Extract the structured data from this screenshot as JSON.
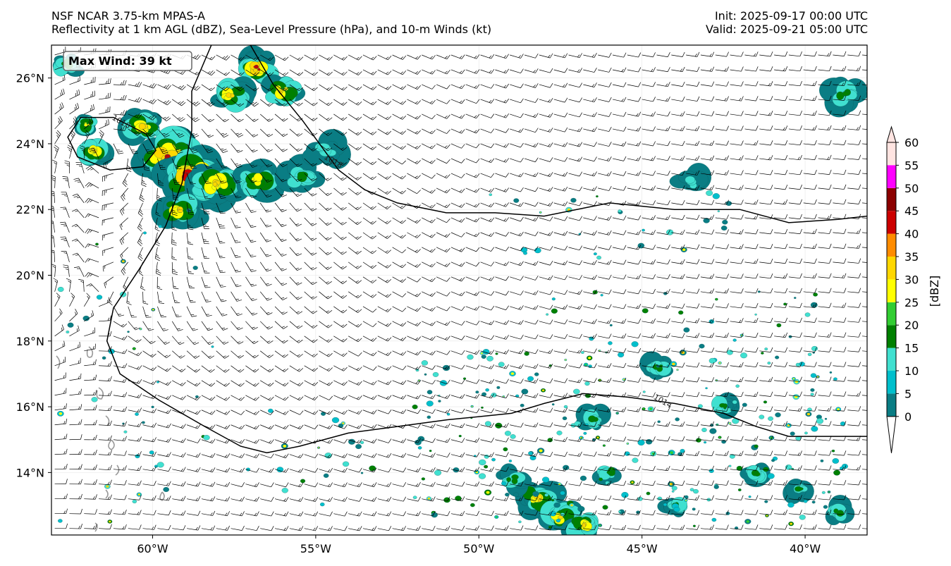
{
  "header": {
    "left_line1": "NSF NCAR 3.75-km MPAS-A",
    "left_line2": "Reflectivity at 1 km AGL (dBZ), Sea-Level Pressure (hPa), and 10-m Winds (kt)",
    "right_line1": "Init: 2025-09-17 00:00 UTC",
    "right_line2": "Valid: 2025-09-21 05:00 UTC"
  },
  "map": {
    "lon_range": [
      -63.1,
      -38.1
    ],
    "lat_range": [
      12.1,
      27.0
    ],
    "lon_ticks": [
      {
        "value": -60,
        "label": "60°W"
      },
      {
        "value": -55,
        "label": "55°W"
      },
      {
        "value": -50,
        "label": "50°W"
      },
      {
        "value": -45,
        "label": "45°W"
      },
      {
        "value": -40,
        "label": "40°W"
      }
    ],
    "lat_ticks": [
      {
        "value": 26,
        "label": "26°N"
      },
      {
        "value": 24,
        "label": "24°N"
      },
      {
        "value": 22,
        "label": "22°N"
      },
      {
        "value": 20,
        "label": "20°N"
      },
      {
        "value": 18,
        "label": "18°N"
      },
      {
        "value": 16,
        "label": "16°N"
      },
      {
        "value": 14,
        "label": "14°N"
      }
    ],
    "max_wind_label": "Max Wind: 39 kt",
    "isobars": [
      {
        "label": "1018",
        "label_lon": -54.5,
        "label_lat": 23.4,
        "points": [
          [
            -57.0,
            27.0
          ],
          [
            -56.3,
            25.8
          ],
          [
            -55.4,
            24.7
          ],
          [
            -54.3,
            23.2
          ],
          [
            -53.5,
            22.6
          ],
          [
            -52.5,
            22.2
          ],
          [
            -51.0,
            21.9
          ],
          [
            -49.5,
            21.9
          ],
          [
            -48.0,
            21.8
          ],
          [
            -46.0,
            22.2
          ],
          [
            -44.0,
            22.0
          ],
          [
            -42.0,
            22.0
          ],
          [
            -40.5,
            21.6
          ],
          [
            -39.0,
            21.7
          ],
          [
            -38.1,
            21.8
          ]
        ]
      },
      {
        "label": "1014",
        "label_lon": -44.4,
        "label_lat": 16.1,
        "points": [
          [
            -58.2,
            27.0
          ],
          [
            -58.8,
            25.6
          ],
          [
            -58.8,
            24.4
          ],
          [
            -59.1,
            22.8
          ],
          [
            -59.6,
            21.5
          ],
          [
            -60.4,
            20.2
          ],
          [
            -61.2,
            19.0
          ],
          [
            -61.4,
            18.0
          ],
          [
            -61.0,
            17.0
          ],
          [
            -59.8,
            16.2
          ],
          [
            -58.4,
            15.4
          ],
          [
            -57.3,
            14.8
          ],
          [
            -56.5,
            14.6
          ],
          [
            -55.5,
            14.8
          ],
          [
            -54.0,
            15.2
          ],
          [
            -52.5,
            15.4
          ],
          [
            -51.0,
            15.6
          ],
          [
            -50.0,
            15.7
          ],
          [
            -49.0,
            15.8
          ],
          [
            -48.0,
            16.1
          ],
          [
            -46.8,
            16.4
          ],
          [
            -45.5,
            16.3
          ],
          [
            -44.0,
            16.1
          ],
          [
            -42.5,
            15.8
          ],
          [
            -41.5,
            15.4
          ],
          [
            -40.5,
            15.1
          ],
          [
            -39.2,
            15.1
          ],
          [
            -38.1,
            15.1
          ]
        ]
      },
      {
        "label": "1010",
        "label_lon": -61.0,
        "label_lat": 24.6,
        "points": [
          [
            -61.2,
            24.8
          ],
          [
            -60.2,
            24.3
          ],
          [
            -59.9,
            23.8
          ],
          [
            -60.3,
            23.3
          ],
          [
            -61.3,
            23.2
          ],
          [
            -62.3,
            23.6
          ],
          [
            -62.6,
            24.2
          ],
          [
            -62.2,
            24.8
          ],
          [
            -61.2,
            24.8
          ]
        ]
      }
    ],
    "echo_clusters": [
      {
        "lon": -59.5,
        "lat": 23.6,
        "dbz": 45,
        "size": 1.2
      },
      {
        "lon": -58.8,
        "lat": 23.0,
        "dbz": 50,
        "size": 1.0
      },
      {
        "lon": -58.0,
        "lat": 22.8,
        "dbz": 40,
        "size": 0.9
      },
      {
        "lon": -59.2,
        "lat": 22.0,
        "dbz": 40,
        "size": 0.7
      },
      {
        "lon": -60.3,
        "lat": 24.5,
        "dbz": 35,
        "size": 0.7
      },
      {
        "lon": -56.8,
        "lat": 22.9,
        "dbz": 30,
        "size": 0.8
      },
      {
        "lon": -55.4,
        "lat": 23.0,
        "dbz": 20,
        "size": 0.7
      },
      {
        "lon": -56.8,
        "lat": 26.3,
        "dbz": 45,
        "size": 0.6
      },
      {
        "lon": -56.0,
        "lat": 25.6,
        "dbz": 35,
        "size": 0.6
      },
      {
        "lon": -57.6,
        "lat": 25.5,
        "dbz": 35,
        "size": 0.6
      },
      {
        "lon": -61.8,
        "lat": 23.8,
        "dbz": 40,
        "size": 0.5
      },
      {
        "lon": -62.0,
        "lat": 24.6,
        "dbz": 30,
        "size": 0.4
      },
      {
        "lon": -62.6,
        "lat": 26.4,
        "dbz": 25,
        "size": 0.5
      },
      {
        "lon": -54.7,
        "lat": 23.8,
        "dbz": 15,
        "size": 0.6
      },
      {
        "lon": -38.8,
        "lat": 25.5,
        "dbz": 20,
        "size": 0.6
      },
      {
        "lon": -43.5,
        "lat": 22.8,
        "dbz": 15,
        "size": 0.5
      },
      {
        "lon": -48.2,
        "lat": 13.2,
        "dbz": 35,
        "size": 0.7
      },
      {
        "lon": -47.5,
        "lat": 12.6,
        "dbz": 35,
        "size": 0.6
      },
      {
        "lon": -46.8,
        "lat": 12.4,
        "dbz": 40,
        "size": 0.5
      },
      {
        "lon": -49.0,
        "lat": 13.8,
        "dbz": 20,
        "size": 0.5
      },
      {
        "lon": -46.5,
        "lat": 15.6,
        "dbz": 25,
        "size": 0.4
      },
      {
        "lon": -44.5,
        "lat": 17.2,
        "dbz": 20,
        "size": 0.4
      },
      {
        "lon": -42.5,
        "lat": 16.0,
        "dbz": 20,
        "size": 0.4
      },
      {
        "lon": -40.2,
        "lat": 13.5,
        "dbz": 20,
        "size": 0.4
      },
      {
        "lon": -41.5,
        "lat": 14.0,
        "dbz": 20,
        "size": 0.4
      },
      {
        "lon": -46.0,
        "lat": 14.0,
        "dbz": 25,
        "size": 0.4
      },
      {
        "lon": -39.0,
        "lat": 12.8,
        "dbz": 25,
        "size": 0.4
      },
      {
        "lon": -44.0,
        "lat": 13.0,
        "dbz": 20,
        "size": 0.4
      }
    ]
  },
  "colorbar": {
    "label": "[dBZ]",
    "bands": [
      {
        "from": 0,
        "to": 5,
        "color": "#0a7d84"
      },
      {
        "from": 5,
        "to": 10,
        "color": "#00bfcc"
      },
      {
        "from": 10,
        "to": 15,
        "color": "#40e0d0"
      },
      {
        "from": 15,
        "to": 20,
        "color": "#008000"
      },
      {
        "from": 20,
        "to": 25,
        "color": "#32cd32"
      },
      {
        "from": 25,
        "to": 30,
        "color": "#ffff00"
      },
      {
        "from": 30,
        "to": 35,
        "color": "#ffd700"
      },
      {
        "from": 35,
        "to": 40,
        "color": "#ff8c00"
      },
      {
        "from": 40,
        "to": 45,
        "color": "#cc0000"
      },
      {
        "from": 45,
        "to": 50,
        "color": "#8b0000"
      },
      {
        "from": 50,
        "to": 55,
        "color": "#ff00ff"
      }
    ],
    "under_color": "#ffffff",
    "over_color": "#ffe4e1",
    "ticks": [
      "0",
      "5",
      "10",
      "15",
      "20",
      "25",
      "30",
      "35",
      "40",
      "45",
      "50",
      "55",
      "60"
    ]
  }
}
